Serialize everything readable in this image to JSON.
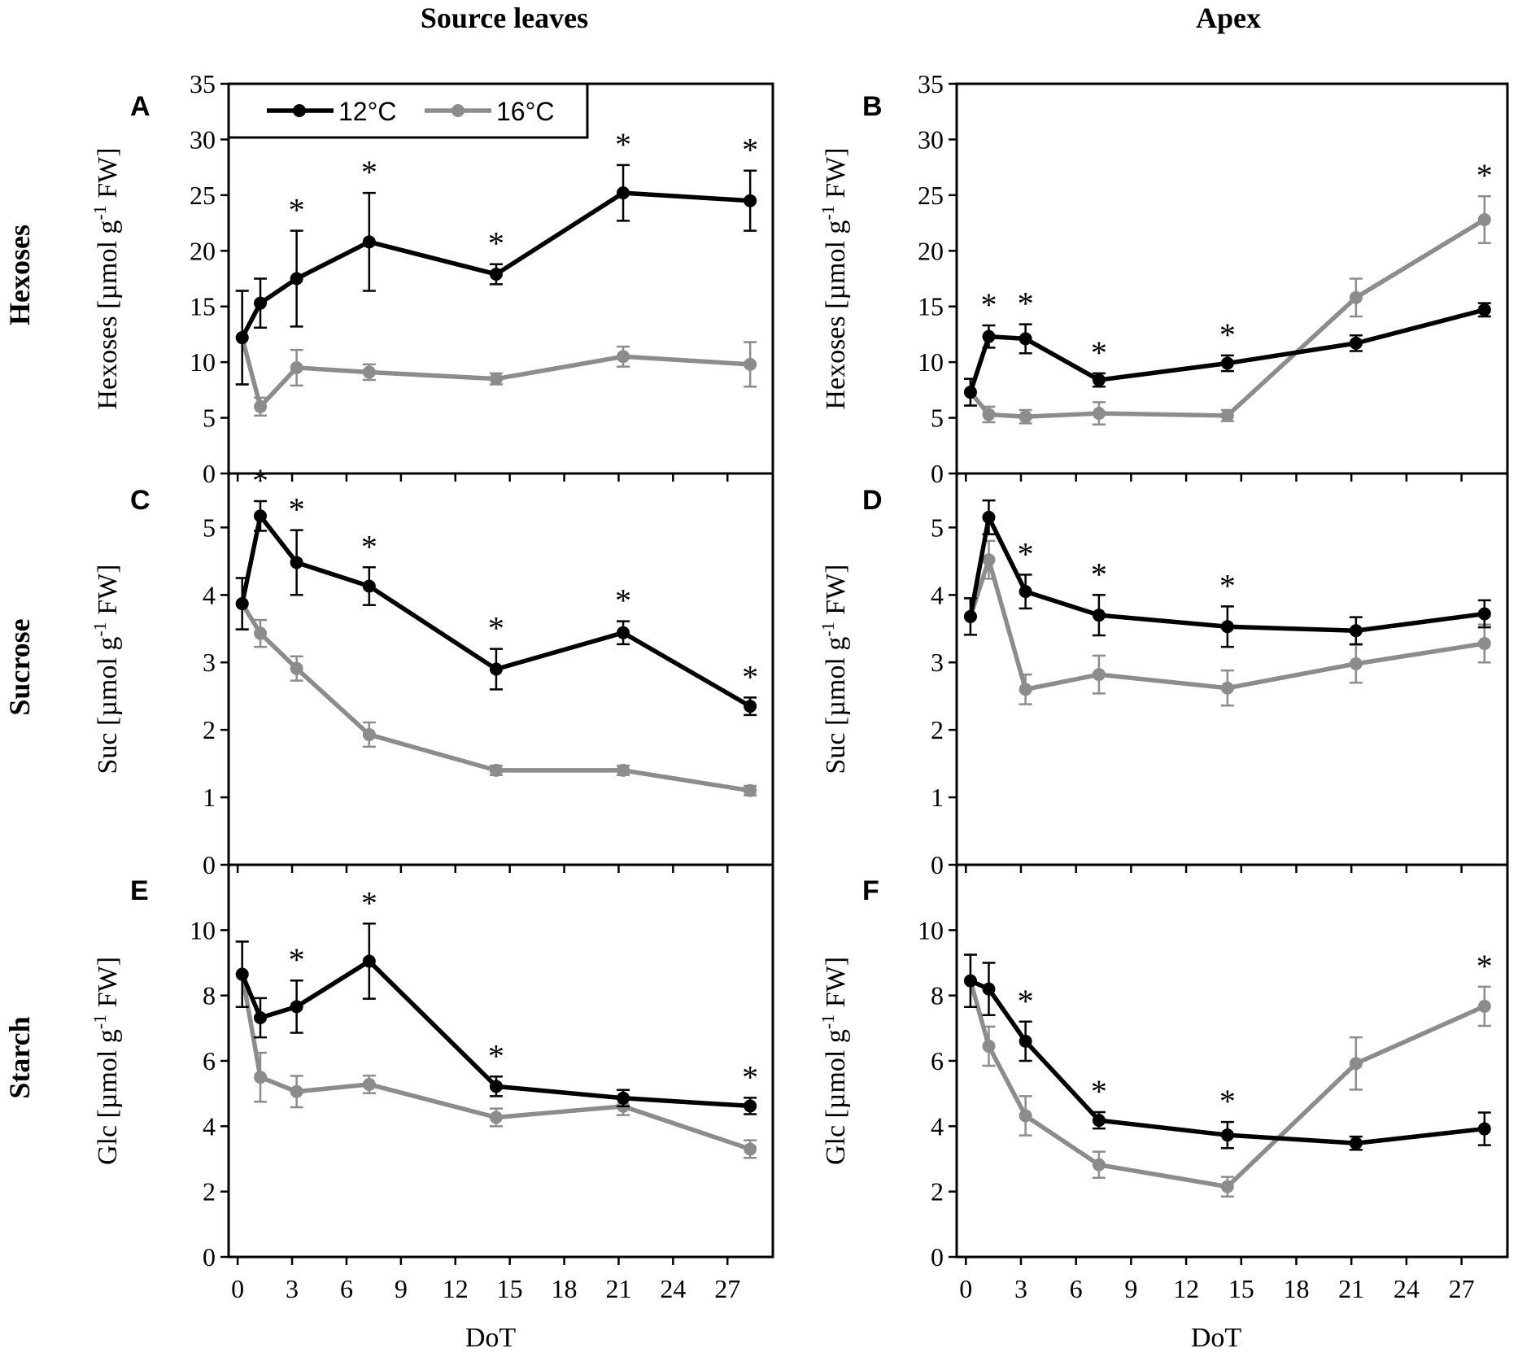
{
  "columns": {
    "left": "Source leaves",
    "right": "Apex"
  },
  "rows": [
    "Hexoses",
    "Sucrose",
    "Starch"
  ],
  "x_axis_label": "DoT",
  "x_ticks": [
    0,
    3,
    6,
    9,
    12,
    15,
    18,
    21,
    24,
    27
  ],
  "legend": [
    {
      "label": "12°C",
      "color": "#000000"
    },
    {
      "label": "16°C",
      "color": "#8c8c8c"
    }
  ],
  "significance_marker": "*",
  "chart_data": [
    {
      "panel": "A",
      "type": "line",
      "column": "Source leaves",
      "row": "Hexoses",
      "ylabel_pre": "Hexoses [µmol g",
      "ylabel_sup": "-1",
      "ylabel_post": " FW]",
      "xlabel": "DoT",
      "xlim": [
        -0.5,
        29.5
      ],
      "ylim": [
        0,
        35
      ],
      "yticks": [
        0,
        5,
        10,
        15,
        20,
        25,
        30,
        35
      ],
      "x": [
        0.25,
        1.25,
        3.25,
        7.25,
        14.25,
        21.25,
        28.25
      ],
      "series": [
        {
          "name": "12°C",
          "values": [
            12.2,
            15.3,
            17.5,
            20.8,
            17.9,
            25.2,
            24.5
          ],
          "errors": [
            4.2,
            2.2,
            4.3,
            4.4,
            0.9,
            2.5,
            2.7
          ]
        },
        {
          "name": "16°C",
          "values": [
            12.2,
            6.0,
            9.5,
            9.1,
            8.5,
            10.5,
            9.8
          ],
          "errors": [
            4.2,
            0.8,
            1.6,
            0.7,
            0.5,
            0.9,
            2.0
          ]
        }
      ],
      "significant_x": [
        3.25,
        7.25,
        14.25,
        21.25,
        28.25
      ]
    },
    {
      "panel": "B",
      "type": "line",
      "column": "Apex",
      "row": "Hexoses",
      "ylabel_pre": "Hexoses [µmol g",
      "ylabel_sup": "-1",
      "ylabel_post": " FW]",
      "xlabel": "DoT",
      "xlim": [
        -0.5,
        29.5
      ],
      "ylim": [
        0,
        35
      ],
      "yticks": [
        0,
        5,
        10,
        15,
        20,
        25,
        30,
        35
      ],
      "x": [
        0.25,
        1.25,
        3.25,
        7.25,
        14.25,
        21.25,
        28.25
      ],
      "series": [
        {
          "name": "12°C",
          "values": [
            7.3,
            12.3,
            12.1,
            8.4,
            9.9,
            11.7,
            14.7
          ],
          "errors": [
            1.2,
            1.0,
            1.3,
            0.6,
            0.7,
            0.7,
            0.6
          ]
        },
        {
          "name": "16°C",
          "values": [
            7.3,
            5.3,
            5.1,
            5.4,
            5.2,
            15.8,
            22.8
          ],
          "errors": [
            1.2,
            0.7,
            0.6,
            1.0,
            0.5,
            1.7,
            2.1
          ]
        }
      ],
      "significant_x": [
        1.25,
        3.25,
        7.25,
        14.25,
        28.25
      ]
    },
    {
      "panel": "C",
      "type": "line",
      "column": "Source leaves",
      "row": "Sucrose",
      "ylabel_pre": "Suc [µmol g",
      "ylabel_sup": "-1",
      "ylabel_post": " FW]",
      "xlabel": "DoT",
      "xlim": [
        -0.5,
        29.5
      ],
      "ylim": [
        0,
        5.8
      ],
      "yticks": [
        0,
        1,
        2,
        3,
        4,
        5
      ],
      "x": [
        0.25,
        1.25,
        3.25,
        7.25,
        14.25,
        21.25,
        28.25
      ],
      "series": [
        {
          "name": "12°C",
          "values": [
            3.87,
            5.17,
            4.48,
            4.13,
            2.9,
            3.44,
            2.35
          ],
          "errors": [
            0.38,
            0.22,
            0.48,
            0.28,
            0.3,
            0.17,
            0.13
          ]
        },
        {
          "name": "16°C",
          "values": [
            3.87,
            3.43,
            2.91,
            1.93,
            1.4,
            1.4,
            1.1
          ],
          "errors": [
            0.38,
            0.2,
            0.18,
            0.18,
            0.07,
            0.07,
            0.07
          ]
        }
      ],
      "significant_x": [
        1.25,
        3.25,
        7.25,
        14.25,
        21.25,
        28.25
      ]
    },
    {
      "panel": "D",
      "type": "line",
      "column": "Apex",
      "row": "Sucrose",
      "ylabel_pre": "Suc [µmol g",
      "ylabel_sup": "-1",
      "ylabel_post": " FW]",
      "xlabel": "DoT",
      "xlim": [
        -0.5,
        29.5
      ],
      "ylim": [
        0,
        5.8
      ],
      "yticks": [
        0,
        1,
        2,
        3,
        4,
        5
      ],
      "x": [
        0.25,
        1.25,
        3.25,
        7.25,
        14.25,
        21.25,
        28.25
      ],
      "series": [
        {
          "name": "12°C",
          "values": [
            3.68,
            5.15,
            4.05,
            3.7,
            3.53,
            3.47,
            3.72
          ],
          "errors": [
            0.27,
            0.25,
            0.25,
            0.3,
            0.3,
            0.2,
            0.2
          ]
        },
        {
          "name": "16°C",
          "values": [
            3.68,
            4.52,
            2.6,
            2.82,
            2.62,
            2.98,
            3.28
          ],
          "errors": [
            0.27,
            0.28,
            0.22,
            0.28,
            0.26,
            0.28,
            0.28
          ]
        }
      ],
      "significant_x": [
        3.25,
        7.25,
        14.25
      ]
    },
    {
      "panel": "E",
      "type": "line",
      "column": "Source leaves",
      "row": "Starch",
      "ylabel_pre": "Glc [µmol g",
      "ylabel_sup": "-1",
      "ylabel_post": " FW]",
      "xlabel": "DoT",
      "xlim": [
        -0.5,
        29.5
      ],
      "ylim": [
        0,
        12
      ],
      "yticks": [
        0,
        2,
        4,
        6,
        8,
        10
      ],
      "x": [
        0.25,
        1.25,
        3.25,
        7.25,
        14.25,
        21.25,
        28.25
      ],
      "series": [
        {
          "name": "12°C",
          "values": [
            8.65,
            7.32,
            7.66,
            9.05,
            5.22,
            4.86,
            4.62
          ],
          "errors": [
            1.0,
            0.6,
            0.8,
            1.15,
            0.3,
            0.25,
            0.25
          ]
        },
        {
          "name": "16°C",
          "values": [
            8.65,
            5.5,
            5.06,
            5.28,
            4.27,
            4.61,
            3.3
          ],
          "errors": [
            1.0,
            0.75,
            0.48,
            0.27,
            0.27,
            0.27,
            0.27
          ]
        }
      ],
      "significant_x": [
        3.25,
        7.25,
        14.25,
        28.25
      ]
    },
    {
      "panel": "F",
      "type": "line",
      "column": "Apex",
      "row": "Starch",
      "ylabel_pre": "Glc [µmol g",
      "ylabel_sup": "-1",
      "ylabel_post": " FW]",
      "xlabel": "DoT",
      "xlim": [
        -0.5,
        29.5
      ],
      "ylim": [
        0,
        12
      ],
      "yticks": [
        0,
        2,
        4,
        6,
        8,
        10
      ],
      "x": [
        0.25,
        1.25,
        3.25,
        7.25,
        14.25,
        21.25,
        28.25
      ],
      "series": [
        {
          "name": "12°C",
          "values": [
            8.45,
            8.2,
            6.6,
            4.18,
            3.73,
            3.48,
            3.92
          ],
          "errors": [
            0.8,
            0.8,
            0.6,
            0.25,
            0.4,
            0.2,
            0.5
          ]
        },
        {
          "name": "16°C",
          "values": [
            8.45,
            6.45,
            4.32,
            2.82,
            2.15,
            5.92,
            7.67
          ],
          "errors": [
            0.8,
            0.6,
            0.6,
            0.4,
            0.3,
            0.8,
            0.6
          ]
        }
      ],
      "significant_x": [
        3.25,
        7.25,
        14.25,
        28.25
      ]
    }
  ]
}
